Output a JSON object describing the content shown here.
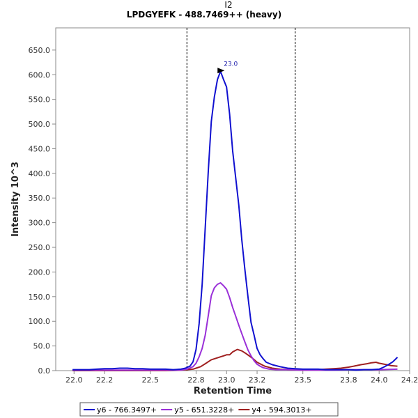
{
  "chart_data": {
    "type": "line",
    "title": "I2",
    "subtitle": "LPDGYEFK - 488.7469++ (heavy)",
    "xlabel": "Retention Time",
    "ylabel": "Intensity 10^3",
    "xlim": [
      21.88,
      24.2
    ],
    "ylim": [
      0,
      695
    ],
    "x_ticks": [
      22.0,
      22.2,
      22.5,
      22.8,
      23.0,
      23.2,
      23.5,
      23.8,
      24.0,
      24.2
    ],
    "x_tick_labels": [
      "22.0",
      "22.2",
      "22.5",
      "22.8",
      "23.0",
      "23.2",
      "23.5",
      "23.8",
      "24.0",
      "24.2"
    ],
    "y_ticks": [
      0,
      50,
      100,
      150,
      200,
      250,
      300,
      350,
      400,
      450,
      500,
      550,
      600,
      650
    ],
    "y_tick_labels": [
      "0.0",
      "50.0",
      "100.0",
      "150.0",
      "200.0",
      "250.0",
      "300.0",
      "350.0",
      "400.0",
      "450.0",
      "500.0",
      "550.0",
      "600.0",
      "650.0"
    ],
    "vlines": [
      22.74,
      23.45
    ],
    "peak_annotation": {
      "x": 23.0,
      "y": 607,
      "label": "23.0"
    },
    "grid": false,
    "legend_position": "bottom",
    "series": [
      {
        "name": "y6 - 766.3497+",
        "color": "#1010d0",
        "x": [
          21.99,
          22.05,
          22.1,
          22.15,
          22.2,
          22.25,
          22.3,
          22.35,
          22.4,
          22.45,
          22.5,
          22.55,
          22.6,
          22.65,
          22.7,
          22.73,
          22.76,
          22.78,
          22.8,
          22.82,
          22.84,
          22.86,
          22.88,
          22.9,
          22.92,
          22.94,
          22.96,
          22.98,
          23.0,
          23.02,
          23.04,
          23.06,
          23.08,
          23.1,
          23.12,
          23.14,
          23.16,
          23.18,
          23.2,
          23.22,
          23.24,
          23.26,
          23.3,
          23.35,
          23.4,
          23.45,
          23.5,
          23.55,
          23.6,
          23.65,
          23.7,
          23.75,
          23.8,
          23.85,
          23.9,
          23.95,
          24.0,
          24.03,
          24.06,
          24.09,
          24.12
        ],
        "y": [
          2,
          2,
          2,
          3,
          4,
          4,
          5,
          5,
          4,
          4,
          3,
          3,
          3,
          2,
          3,
          5,
          9,
          18,
          43,
          95,
          175,
          290,
          405,
          505,
          555,
          590,
          607,
          590,
          575,
          520,
          445,
          390,
          335,
          265,
          205,
          150,
          98,
          72,
          45,
          32,
          24,
          17,
          12,
          8,
          5,
          4,
          3,
          3,
          3,
          2,
          2,
          2,
          2,
          1,
          2,
          2,
          3,
          7,
          12,
          18,
          27
        ]
      },
      {
        "name": "y5 - 651.3228+",
        "color": "#9a30d8",
        "x": [
          21.99,
          22.1,
          22.2,
          22.3,
          22.4,
          22.5,
          22.6,
          22.7,
          22.74,
          22.78,
          22.8,
          22.82,
          22.84,
          22.86,
          22.88,
          22.9,
          22.92,
          22.94,
          22.96,
          22.98,
          23.0,
          23.02,
          23.04,
          23.06,
          23.08,
          23.1,
          23.12,
          23.14,
          23.16,
          23.18,
          23.2,
          23.22,
          23.24,
          23.28,
          23.33,
          23.4,
          23.5,
          23.6,
          23.7,
          23.8,
          23.9,
          24.0,
          24.12
        ],
        "y": [
          1,
          1,
          1,
          1,
          1,
          1,
          1,
          1,
          3,
          8,
          15,
          28,
          45,
          72,
          112,
          152,
          168,
          175,
          178,
          172,
          165,
          148,
          128,
          110,
          92,
          75,
          58,
          42,
          30,
          20,
          13,
          9,
          6,
          3,
          2,
          2,
          1,
          1,
          1,
          2,
          2,
          2,
          3
        ]
      },
      {
        "name": "y4 - 594.3013+",
        "color": "#a02020",
        "x": [
          21.99,
          22.1,
          22.2,
          22.3,
          22.4,
          22.5,
          22.6,
          22.7,
          22.74,
          22.78,
          22.8,
          22.83,
          22.86,
          22.9,
          22.93,
          22.96,
          22.98,
          23.0,
          23.02,
          23.04,
          23.07,
          23.1,
          23.13,
          23.17,
          23.2,
          23.25,
          23.3,
          23.35,
          23.4,
          23.5,
          23.6,
          23.65,
          23.7,
          23.75,
          23.8,
          23.85,
          23.88,
          23.92,
          23.95,
          23.98,
          24.0,
          24.05,
          24.08,
          24.12
        ],
        "y": [
          0,
          0,
          0,
          0,
          0,
          0,
          0,
          1,
          2,
          3,
          5,
          8,
          14,
          22,
          25,
          28,
          30,
          32,
          32,
          38,
          43,
          40,
          34,
          25,
          17,
          9,
          5,
          3,
          2,
          1,
          2,
          3,
          4,
          5,
          7,
          10,
          12,
          14,
          16,
          17,
          15,
          12,
          10,
          9
        ]
      }
    ]
  }
}
